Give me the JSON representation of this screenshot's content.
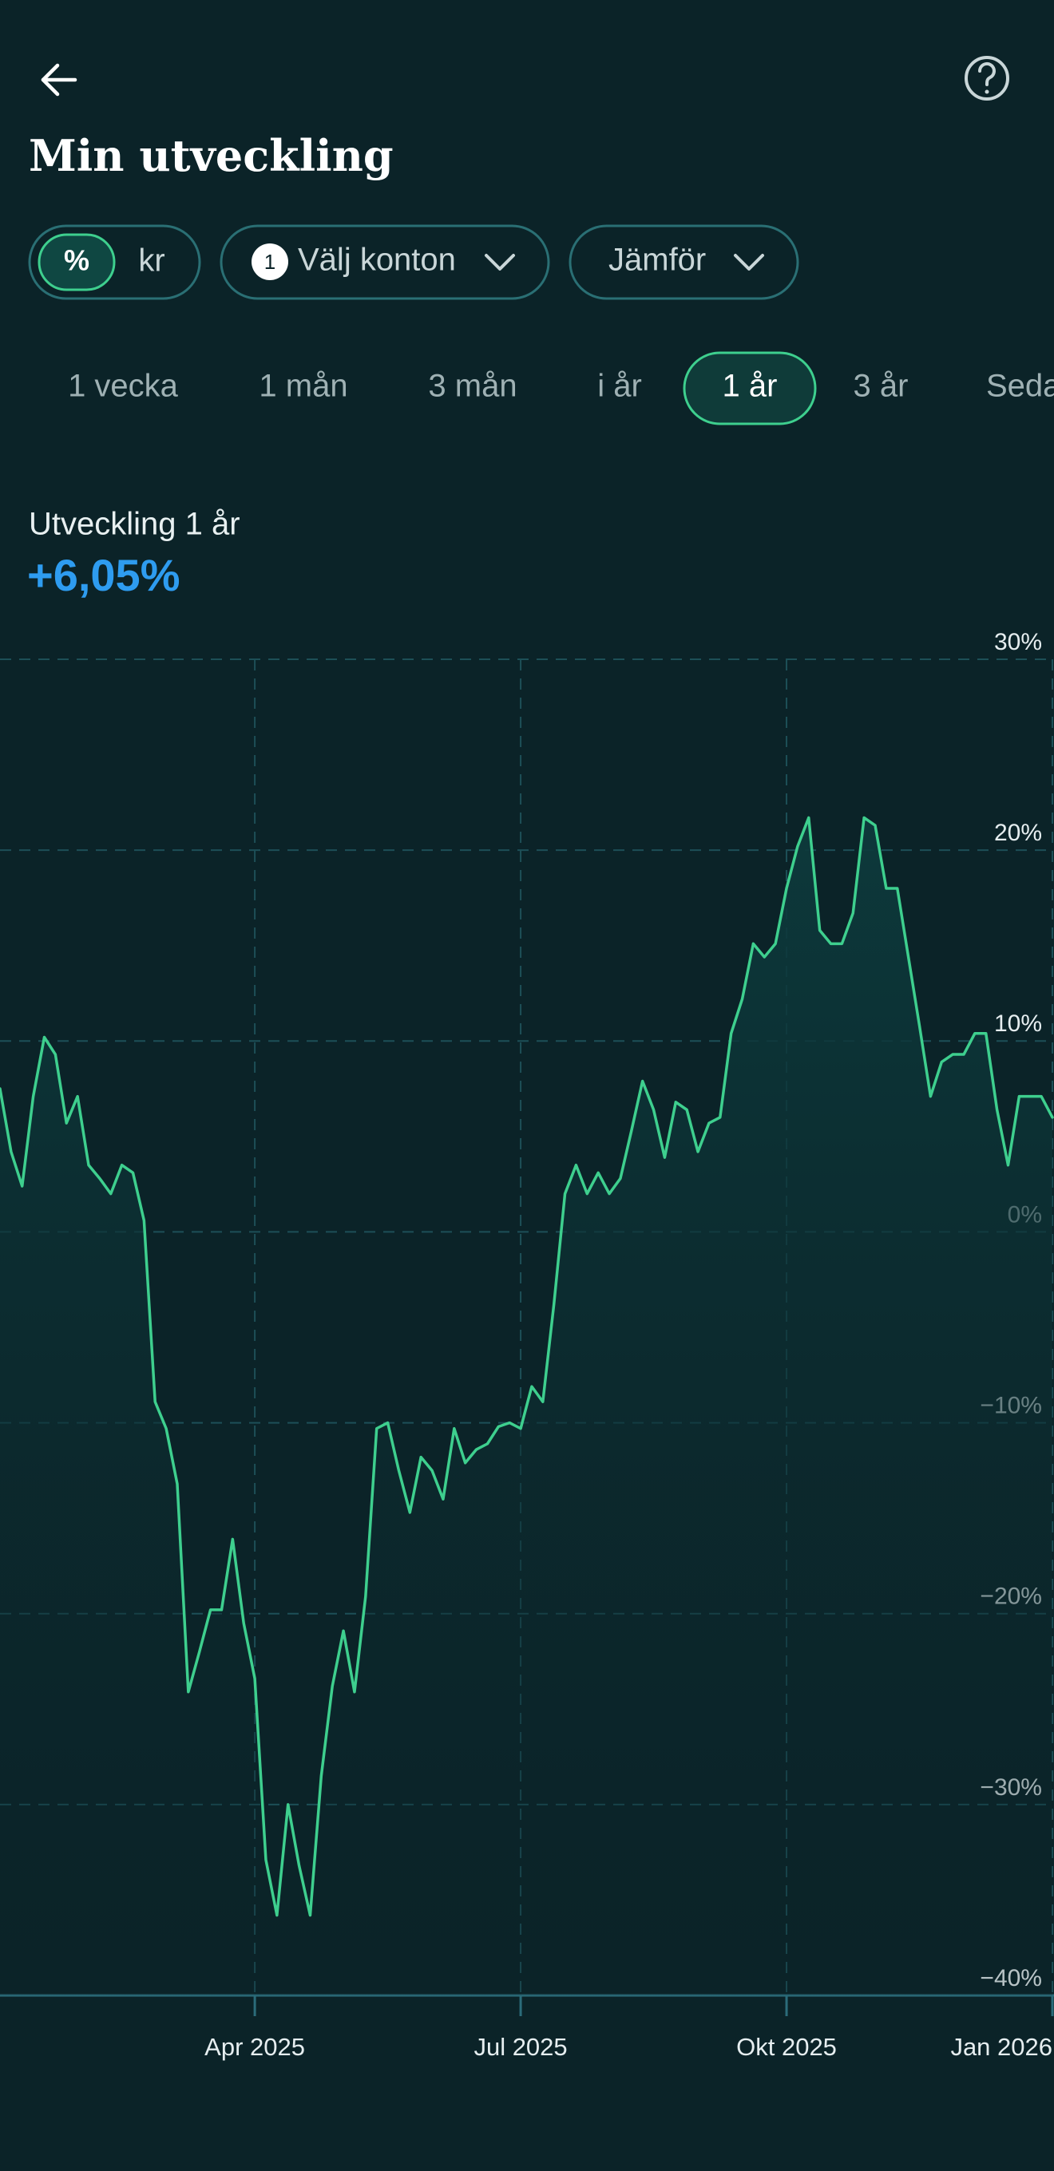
{
  "header": {
    "title": "Min utveckling"
  },
  "controls": {
    "unit_percent": "%",
    "unit_kr": "kr",
    "account_badge": "1",
    "accounts": "Välj konton",
    "compare": "Jämför"
  },
  "periods": [
    "1 vecka",
    "1 mån",
    "3 mån",
    "i år",
    "1 år",
    "3 år",
    "Seda"
  ],
  "summary": {
    "label": "Utveckling 1 år",
    "value": "+6,05%"
  },
  "chart_data": {
    "type": "line",
    "color": "#3ecf8e",
    "grid": true,
    "categories": [
      null,
      null,
      null,
      null,
      null,
      null,
      null,
      null,
      null,
      null,
      null,
      null,
      null,
      null,
      null,
      null,
      null,
      null,
      null,
      null,
      null,
      null,
      null,
      "Apr 2025",
      null,
      null,
      null,
      null,
      null,
      null,
      null,
      null,
      null,
      null,
      null,
      null,
      null,
      null,
      null,
      null,
      null,
      null,
      null,
      null,
      null,
      null,
      null,
      "Jul 2025",
      null,
      null,
      null,
      null,
      null,
      null,
      null,
      null,
      null,
      null,
      null,
      null,
      null,
      null,
      null,
      null,
      null,
      null,
      null,
      null,
      null,
      null,
      null,
      "Okt 2025",
      null,
      null,
      null,
      null,
      null,
      null,
      null,
      null,
      null,
      null,
      null,
      null,
      null,
      null,
      null,
      null,
      null,
      null,
      null,
      null,
      null,
      null,
      null,
      "Jan 2026"
    ],
    "series": [
      {
        "name": "Utveckling",
        "color": "#3ecf8e",
        "values": [
          7.5,
          4.2,
          2.4,
          7.1,
          10.2,
          9.3,
          5.7,
          7.1,
          3.5,
          2.8,
          2.0,
          3.5,
          3.1,
          0.6,
          -8.9,
          -10.3,
          -13.2,
          -24.1,
          -22.0,
          -19.8,
          -19.8,
          -16.1,
          -20.5,
          -23.4,
          -32.9,
          -35.8,
          -30.0,
          -33.2,
          -35.8,
          -28.5,
          -23.8,
          -20.9,
          -24.1,
          -19.1,
          -10.3,
          -10.0,
          -12.5,
          -14.7,
          -11.8,
          -12.5,
          -14.0,
          -10.3,
          -12.1,
          -11.4,
          -11.1,
          -10.2,
          -10.0,
          -10.3,
          -8.1,
          -8.9,
          -3.8,
          2.0,
          3.5,
          2.0,
          3.1,
          2.0,
          2.8,
          5.3,
          7.9,
          6.4,
          3.9,
          6.8,
          6.4,
          4.2,
          5.7,
          6.0,
          10.4,
          12.2,
          15.1,
          14.4,
          15.1,
          18.0,
          20.2,
          21.7,
          15.8,
          15.1,
          15.1,
          16.7,
          21.7,
          21.3,
          18.0,
          18.0,
          14.4,
          10.8,
          7.1,
          8.9,
          9.3,
          9.3,
          10.4,
          10.4,
          6.4,
          3.5,
          7.1,
          7.1,
          7.1,
          6.0
        ]
      }
    ],
    "ylim": [
      -40,
      30
    ],
    "yticks": [
      {
        "value": 30,
        "label": "30%"
      },
      {
        "value": 20,
        "label": "20%"
      },
      {
        "value": 10,
        "label": "10%"
      },
      {
        "value": 0,
        "label": "0%"
      },
      {
        "value": -10,
        "label": "−10%"
      },
      {
        "value": -20,
        "label": "−20%"
      },
      {
        "value": -30,
        "label": "−30%"
      },
      {
        "value": -40,
        "label": "−40%"
      }
    ]
  }
}
